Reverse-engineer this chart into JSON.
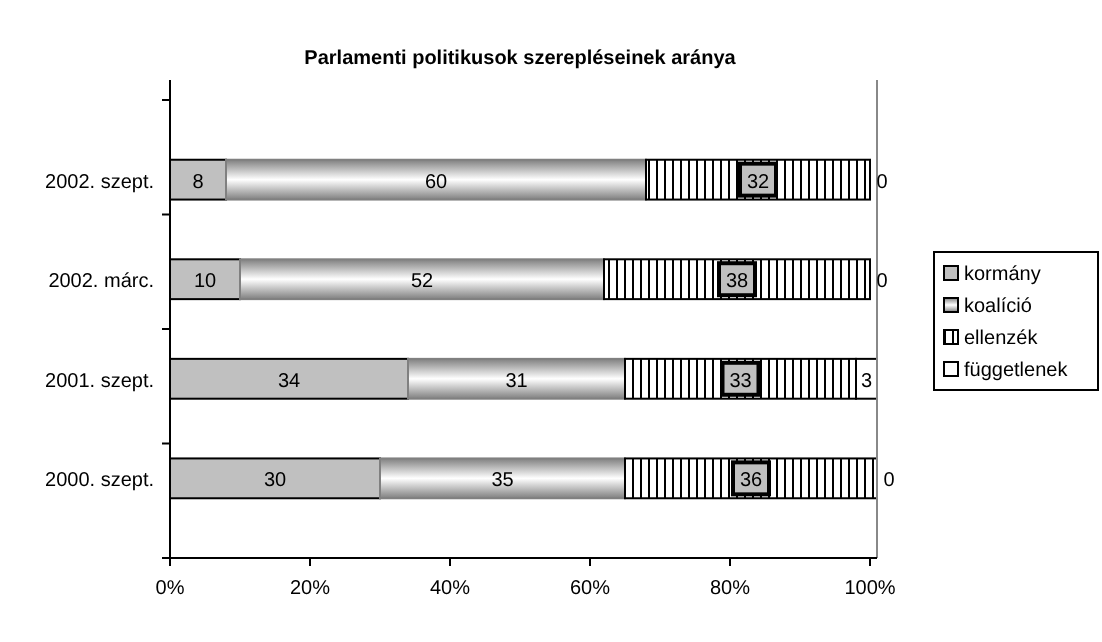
{
  "chart_data": {
    "type": "bar",
    "orientation": "horizontal",
    "stacked": true,
    "title": "Parlamenti politikusok szerepléseinek aránya",
    "categories": [
      "2002. szept.",
      "2002. márc.",
      "2001. szept.",
      "2000. szept."
    ],
    "series": [
      {
        "name": "kormány",
        "color": "#c0c0c0",
        "values": [
          8,
          10,
          34,
          30
        ]
      },
      {
        "name": "koalíció",
        "color": "#808080",
        "values": [
          60,
          52,
          31,
          35
        ]
      },
      {
        "name": "ellenzék",
        "color": "#000000",
        "values": [
          32,
          38,
          33,
          36
        ]
      },
      {
        "name": "függetlenek",
        "color": "#ffffff",
        "values": [
          0,
          0,
          3,
          0
        ]
      }
    ],
    "xlim": [
      0,
      101
    ],
    "xticks": [
      {
        "value": 0,
        "label": "0%"
      },
      {
        "value": 20,
        "label": "20%"
      },
      {
        "value": 40,
        "label": "40%"
      },
      {
        "value": 60,
        "label": "60%"
      },
      {
        "value": 80,
        "label": "80%"
      },
      {
        "value": 100,
        "label": "100%"
      }
    ],
    "data_labels": true,
    "legend": "right",
    "grid": false
  }
}
